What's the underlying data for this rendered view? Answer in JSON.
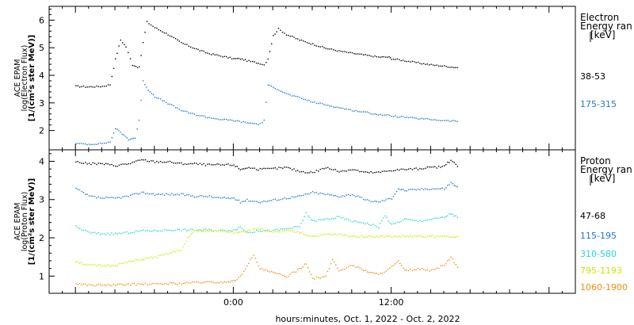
{
  "chart_data": [
    {
      "type": "scatter",
      "panel": "electron",
      "ylabel_lines": [
        "ACE EPAM",
        "log(Electron Flux)",
        "[1/(cm²s ster MeV)]"
      ],
      "legend_title_lines": [
        "Electron",
        "Energy ran",
        "[keV]"
      ],
      "ylim": [
        1.3,
        6.5
      ],
      "yticks": [
        2,
        3,
        4,
        5,
        6
      ],
      "series": [
        {
          "name": "38-53",
          "color": "#000000",
          "points": [
            [
              -12,
              3.62
            ],
            [
              -11,
              3.6
            ],
            [
              -10,
              3.62
            ],
            [
              -9.4,
              3.68
            ],
            [
              -9,
              4.6
            ],
            [
              -8.6,
              5.3
            ],
            [
              -8.2,
              5.05
            ],
            [
              -7.7,
              4.4
            ],
            [
              -7.2,
              4.3
            ],
            [
              -6.9,
              5.2
            ],
            [
              -6.6,
              5.95
            ],
            [
              -6,
              5.75
            ],
            [
              -5,
              5.5
            ],
            [
              -4,
              5.2
            ],
            [
              -3,
              5.0
            ],
            [
              -2,
              4.82
            ],
            [
              -1,
              4.72
            ],
            [
              0,
              4.62
            ],
            [
              0.5,
              4.62
            ],
            [
              1,
              4.55
            ],
            [
              2,
              4.45
            ],
            [
              2.3,
              4.4
            ],
            [
              2.6,
              4.62
            ],
            [
              3,
              5.45
            ],
            [
              3.4,
              5.7
            ],
            [
              4,
              5.5
            ],
            [
              5,
              5.3
            ],
            [
              6,
              5.15
            ],
            [
              7,
              5.0
            ],
            [
              8,
              4.9
            ],
            [
              9,
              4.82
            ],
            [
              10,
              4.75
            ],
            [
              11,
              4.68
            ],
            [
              11.8,
              4.68
            ],
            [
              12,
              4.62
            ],
            [
              13,
              4.55
            ],
            [
              14,
              4.47
            ],
            [
              15,
              4.4
            ],
            [
              16,
              4.35
            ],
            [
              17,
              4.3
            ]
          ]
        },
        {
          "name": "175-315",
          "color": "#1f78c8",
          "points": [
            [
              -12,
              1.55
            ],
            [
              -11,
              1.52
            ],
            [
              -10,
              1.55
            ],
            [
              -9.4,
              1.6
            ],
            [
              -9,
              2.1
            ],
            [
              -8.5,
              1.9
            ],
            [
              -8,
              1.7
            ],
            [
              -7.5,
              1.75
            ],
            [
              -7.2,
              2.4
            ],
            [
              -6.9,
              3.8
            ],
            [
              -6.5,
              3.5
            ],
            [
              -6,
              3.25
            ],
            [
              -5,
              3.0
            ],
            [
              -4,
              2.75
            ],
            [
              -3,
              2.6
            ],
            [
              -2,
              2.5
            ],
            [
              -1,
              2.42
            ],
            [
              0,
              2.38
            ],
            [
              1,
              2.3
            ],
            [
              2,
              2.25
            ],
            [
              2.3,
              2.4
            ],
            [
              2.6,
              3.65
            ],
            [
              3,
              3.6
            ],
            [
              4,
              3.35
            ],
            [
              5,
              3.2
            ],
            [
              6,
              3.05
            ],
            [
              7,
              2.95
            ],
            [
              8,
              2.85
            ],
            [
              9,
              2.75
            ],
            [
              10,
              2.68
            ],
            [
              11,
              2.6
            ],
            [
              12,
              2.55
            ],
            [
              13,
              2.5
            ],
            [
              14,
              2.45
            ],
            [
              15,
              2.42
            ],
            [
              16,
              2.38
            ],
            [
              17,
              2.35
            ]
          ]
        }
      ]
    },
    {
      "type": "scatter",
      "panel": "proton",
      "ylabel_lines": [
        "ACE EPAM",
        "log(Proton Flux)",
        "[1/(cm²s ster MeV)]"
      ],
      "legend_title_lines": [
        "Proton",
        "Energy ran",
        "[keV]"
      ],
      "ylim": [
        0.55,
        4.3
      ],
      "yticks": [
        1,
        2,
        3,
        4
      ],
      "series": [
        {
          "name": "47-68",
          "color": "#000000",
          "points": [
            [
              -12,
              4.0
            ],
            [
              -11,
              3.95
            ],
            [
              -10,
              3.95
            ],
            [
              -9,
              3.9
            ],
            [
              -8,
              3.95
            ],
            [
              -7,
              4.05
            ],
            [
              -6,
              4.0
            ],
            [
              -5,
              4.0
            ],
            [
              -4,
              3.95
            ],
            [
              -3,
              3.95
            ],
            [
              -2,
              3.92
            ],
            [
              -1,
              3.92
            ],
            [
              0,
              3.92
            ],
            [
              0.5,
              3.8
            ],
            [
              1,
              3.85
            ],
            [
              2,
              3.8
            ],
            [
              3,
              3.82
            ],
            [
              4,
              3.85
            ],
            [
              5,
              3.75
            ],
            [
              6,
              3.72
            ],
            [
              7,
              3.85
            ],
            [
              8,
              3.75
            ],
            [
              9,
              3.8
            ],
            [
              10,
              3.72
            ],
            [
              11,
              3.72
            ],
            [
              12,
              3.78
            ],
            [
              13,
              3.8
            ],
            [
              14,
              3.82
            ],
            [
              15,
              3.85
            ],
            [
              16,
              3.88
            ],
            [
              16.5,
              4.05
            ],
            [
              17,
              3.88
            ]
          ]
        },
        {
          "name": "115-195",
          "color": "#1f78c8",
          "points": [
            [
              -12,
              3.3
            ],
            [
              -11,
              3.1
            ],
            [
              -10,
              3.05
            ],
            [
              -9,
              3.05
            ],
            [
              -8,
              3.1
            ],
            [
              -7,
              3.2
            ],
            [
              -6,
              3.15
            ],
            [
              -5,
              3.15
            ],
            [
              -4,
              3.15
            ],
            [
              -3,
              3.1
            ],
            [
              -2,
              3.1
            ],
            [
              -1,
              3.05
            ],
            [
              0,
              3.05
            ],
            [
              0.5,
              2.95
            ],
            [
              1,
              3.0
            ],
            [
              2,
              2.95
            ],
            [
              3,
              3.0
            ],
            [
              4,
              3.05
            ],
            [
              5,
              3.1
            ],
            [
              6,
              3.2
            ],
            [
              7,
              3.15
            ],
            [
              8,
              3.1
            ],
            [
              9,
              3.15
            ],
            [
              10,
              3.0
            ],
            [
              11,
              2.95
            ],
            [
              12,
              3.05
            ],
            [
              12.5,
              3.3
            ],
            [
              13,
              3.25
            ],
            [
              14,
              3.28
            ],
            [
              15,
              3.3
            ],
            [
              16,
              3.3
            ],
            [
              16.5,
              3.45
            ],
            [
              17,
              3.35
            ]
          ]
        },
        {
          "name": "310-580",
          "color": "#22d8cc",
          "points": [
            [
              -12,
              2.3
            ],
            [
              -11,
              2.15
            ],
            [
              -10,
              2.12
            ],
            [
              -9,
              2.12
            ],
            [
              -8,
              2.15
            ],
            [
              -7,
              2.2
            ],
            [
              -6,
              2.2
            ],
            [
              -5,
              2.22
            ],
            [
              -4,
              2.22
            ],
            [
              -3,
              2.22
            ],
            [
              -2,
              2.22
            ],
            [
              -1,
              2.2
            ],
            [
              0,
              2.22
            ],
            [
              0.5,
              2.3
            ],
            [
              1,
              2.15
            ],
            [
              2,
              2.2
            ],
            [
              3,
              2.2
            ],
            [
              4,
              2.25
            ],
            [
              5,
              2.3
            ],
            [
              5.5,
              2.65
            ],
            [
              6,
              2.45
            ],
            [
              7,
              2.5
            ],
            [
              8,
              2.55
            ],
            [
              9,
              2.45
            ],
            [
              10,
              2.4
            ],
            [
              11,
              2.3
            ],
            [
              11.5,
              2.6
            ],
            [
              12,
              2.35
            ],
            [
              13,
              2.5
            ],
            [
              14,
              2.45
            ],
            [
              15,
              2.5
            ],
            [
              16,
              2.55
            ],
            [
              16.5,
              2.65
            ],
            [
              17,
              2.55
            ]
          ]
        },
        {
          "name": "795-1193",
          "color": "#c8e800",
          "points": [
            [
              -12,
              1.4
            ],
            [
              -11,
              1.3
            ],
            [
              -10,
              1.28
            ],
            [
              -9,
              1.3
            ],
            [
              -8,
              1.38
            ],
            [
              -7,
              1.45
            ],
            [
              -6,
              1.5
            ],
            [
              -5,
              1.6
            ],
            [
              -4,
              1.7
            ],
            [
              -3.5,
              2.0
            ],
            [
              -3,
              2.2
            ],
            [
              -2,
              2.18
            ],
            [
              -1,
              2.2
            ],
            [
              0,
              2.15
            ],
            [
              1,
              2.2
            ],
            [
              2,
              2.25
            ],
            [
              3,
              2.15
            ],
            [
              4,
              2.2
            ],
            [
              5,
              2.15
            ],
            [
              6,
              2.05
            ],
            [
              7,
              2.1
            ],
            [
              8,
              2.1
            ],
            [
              9,
              2.05
            ],
            [
              10,
              2.05
            ],
            [
              11,
              2.05
            ],
            [
              12,
              2.05
            ],
            [
              13,
              2.05
            ],
            [
              14,
              2.05
            ],
            [
              15,
              2.05
            ],
            [
              16,
              2.05
            ],
            [
              17,
              2.05
            ]
          ]
        },
        {
          "name": "1060-1900",
          "color": "#f08c10",
          "points": [
            [
              -12,
              0.82
            ],
            [
              -11,
              0.78
            ],
            [
              -10,
              0.78
            ],
            [
              -9,
              0.78
            ],
            [
              -8,
              0.8
            ],
            [
              -7,
              0.8
            ],
            [
              -6,
              0.8
            ],
            [
              -5,
              0.82
            ],
            [
              -4,
              0.82
            ],
            [
              -3,
              0.85
            ],
            [
              -2,
              0.85
            ],
            [
              -1,
              0.85
            ],
            [
              0,
              0.88
            ],
            [
              0.5,
              1.0
            ],
            [
              1,
              1.3
            ],
            [
              1.5,
              1.55
            ],
            [
              2,
              1.2
            ],
            [
              3,
              1.1
            ],
            [
              4,
              1.0
            ],
            [
              5,
              1.2
            ],
            [
              5.5,
              1.35
            ],
            [
              6,
              0.95
            ],
            [
              7,
              1.0
            ],
            [
              7.5,
              1.45
            ],
            [
              8,
              1.15
            ],
            [
              9,
              1.3
            ],
            [
              10,
              1.15
            ],
            [
              11,
              1.05
            ],
            [
              12,
              1.25
            ],
            [
              12.5,
              1.4
            ],
            [
              13,
              1.15
            ],
            [
              14,
              1.2
            ],
            [
              15,
              1.15
            ],
            [
              16,
              1.3
            ],
            [
              16.5,
              1.5
            ],
            [
              17,
              1.25
            ]
          ]
        }
      ]
    }
  ],
  "x_axis": {
    "xlim": [
      -14,
      26
    ],
    "ticks": [
      {
        "value": 0,
        "label": "0:00"
      },
      {
        "value": 12,
        "label": "12:00"
      }
    ],
    "label": "hours:minutes, Oct.  1, 2022 - Oct.  2, 2022"
  }
}
